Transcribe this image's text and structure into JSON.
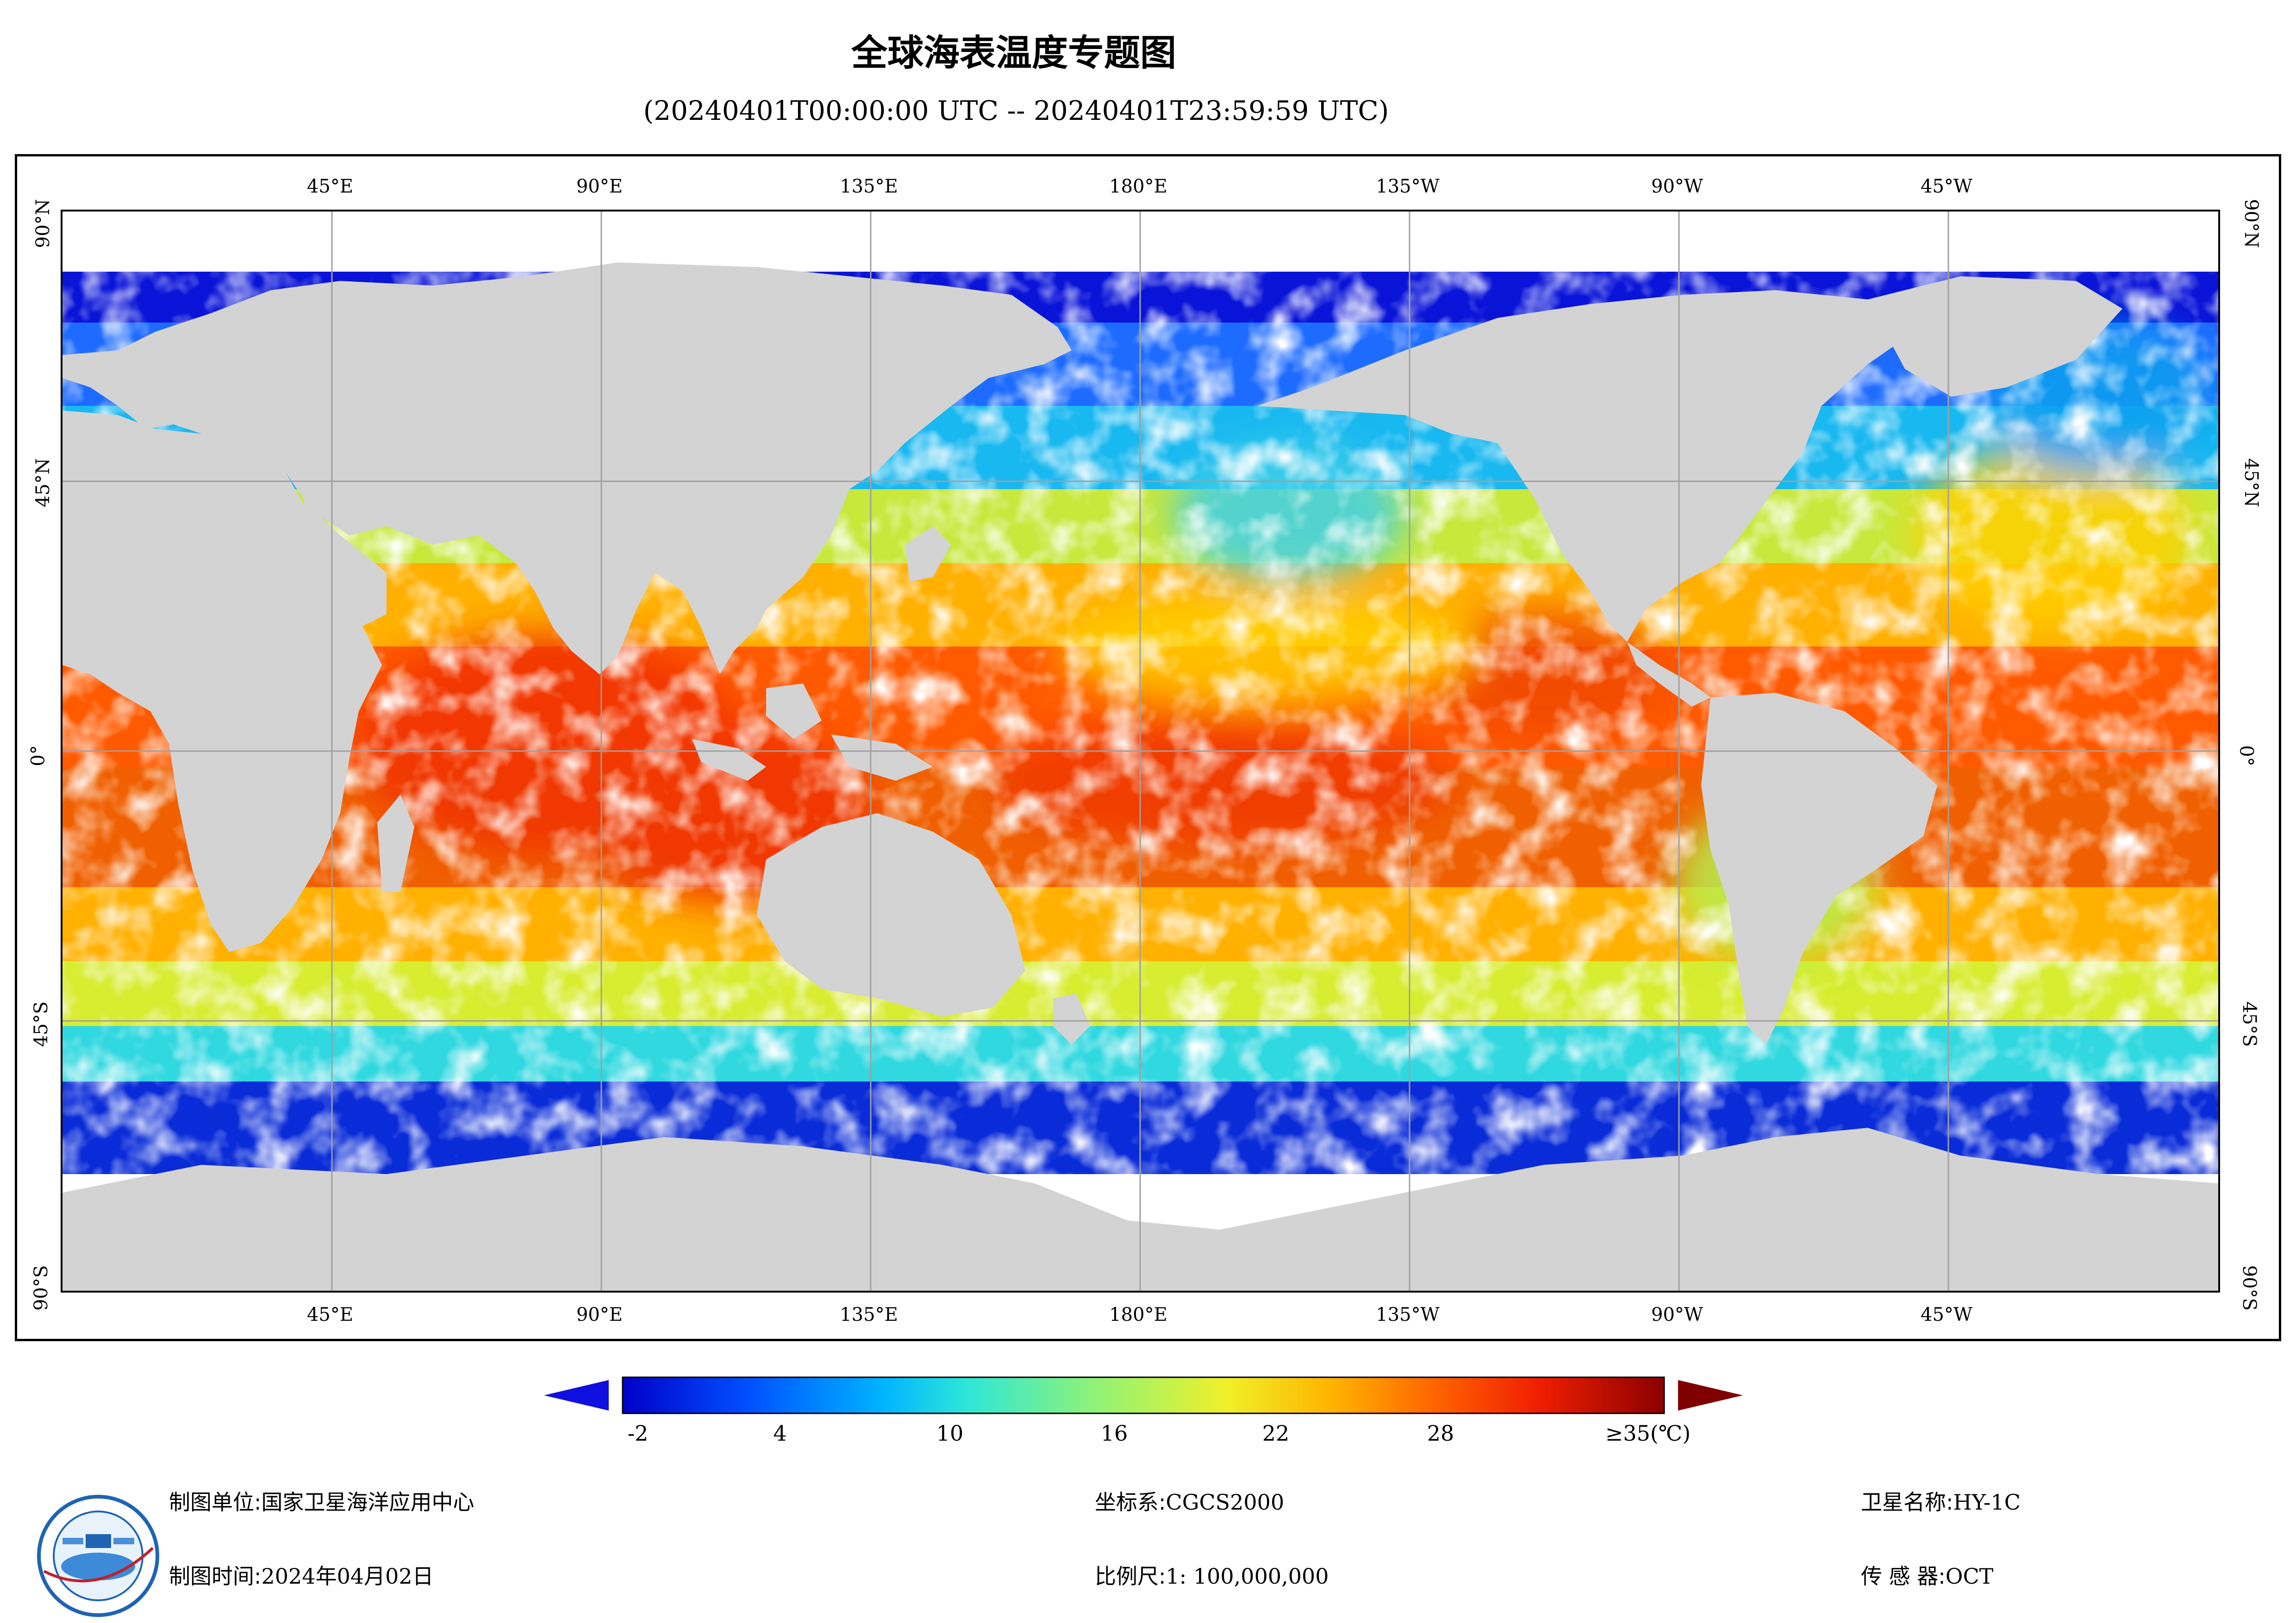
{
  "header": {
    "title": "全球海表温度专题图",
    "subtitle": "(20240401T00:00:00 UTC -- 20240401T23:59:59 UTC)"
  },
  "axes": {
    "longitude_ticks": [
      "45°E",
      "90°E",
      "135°E",
      "180°E",
      "135°W",
      "90°W",
      "45°W"
    ],
    "latitude_ticks": [
      "90°N",
      "45°N",
      "0°",
      "45°S",
      "90°S"
    ]
  },
  "map": {
    "land_color": "#d3d3d3",
    "no_data_color": "#ffffff",
    "grid_color": "#a0a0a0",
    "colormap": [
      "#0000c8",
      "#0050ff",
      "#00b4ff",
      "#2ee6d8",
      "#8cf27a",
      "#f0f028",
      "#ffb400",
      "#ff6400",
      "#f01e00",
      "#8b0000"
    ]
  },
  "colorbar": {
    "labels": [
      "-2",
      "4",
      "10",
      "16",
      "22",
      "28",
      "≥35(℃)"
    ],
    "under_color": "#1010e0",
    "over_color": "#800000"
  },
  "footer": {
    "unit_label": "制图单位:",
    "unit_value": "国家卫星海洋应用中心",
    "time_label": "制图时间:",
    "time_value": "2024年04月02日",
    "crs_label": "坐标系:",
    "crs_value": "CGCS2000",
    "scale_label": "比例尺:",
    "scale_value": "1: 100,000,000",
    "satellite_label": "卫星名称:",
    "satellite_value": "HY-1C",
    "sensor_label": "传  感  器:",
    "sensor_value": "OCT"
  }
}
